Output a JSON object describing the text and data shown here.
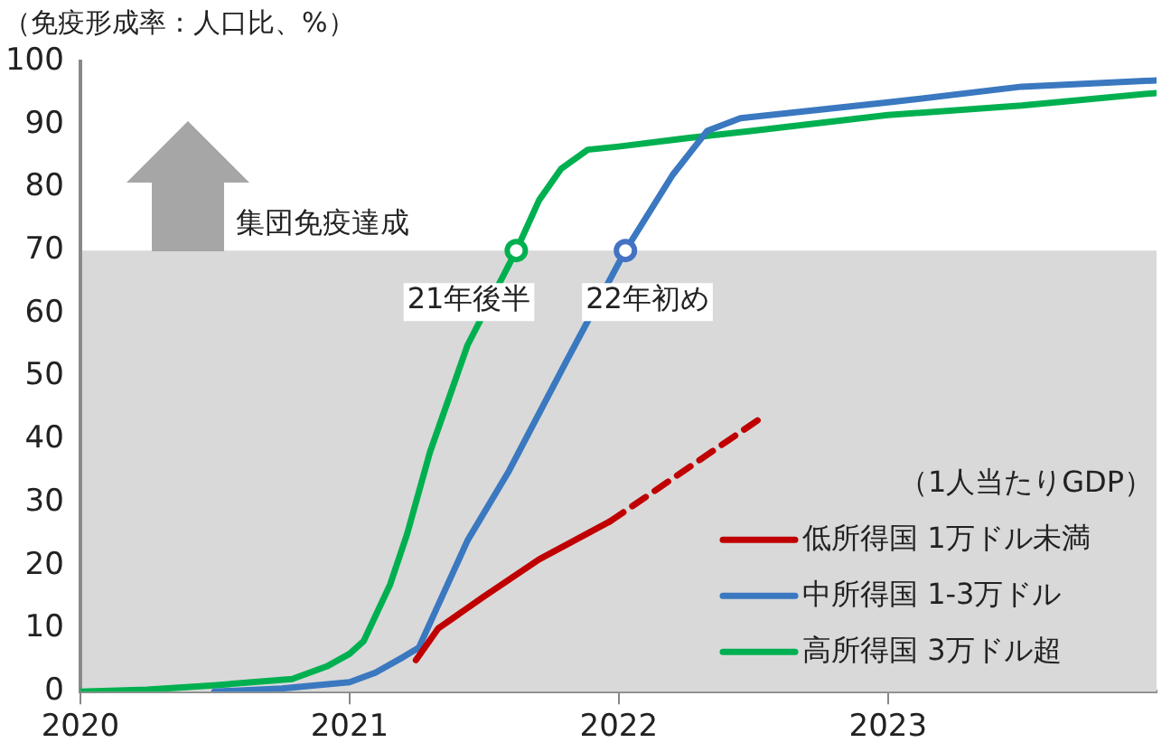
{
  "chart_data": {
    "type": "line",
    "ylabel": "（免疫形成率：人口比、%）",
    "legend_title": "（1人当たりGDP）",
    "legend": "bottom right",
    "grid": false,
    "marker": "none",
    "line_style": "solid",
    "xlim": [
      "2020-01-01",
      "2023-12-31"
    ],
    "xticks": [
      {
        "value": "2020-01-01",
        "label": "2020"
      },
      {
        "value": "2021-01-01",
        "label": "2021"
      },
      {
        "value": "2022-01-01",
        "label": "2022"
      },
      {
        "value": "2023-01-01",
        "label": "2023"
      }
    ],
    "ylim": [
      0,
      100
    ],
    "yticks": [
      0,
      10,
      20,
      30,
      40,
      50,
      60,
      70,
      80,
      90,
      100
    ],
    "bands": [
      {
        "axis": "y",
        "from": 0,
        "to": 70,
        "label": "集団免疫達成",
        "color": "#d9d9d9"
      }
    ],
    "annotations": [
      {
        "text": "21年後半",
        "x": "2021-08-15",
        "y": 70
      },
      {
        "text": "22年初め",
        "x": "2022-01-10",
        "y": 70
      }
    ],
    "series": [
      {
        "name": "低所得国 1万ドル未満",
        "color": "#c00000",
        "x": [
          "2021-04-01",
          "2021-05-01",
          "2021-07-01",
          "2021-09-15",
          "2021-12-20"
        ],
        "values": [
          5,
          10,
          15,
          21,
          27
        ]
      },
      {
        "color": "#c00000",
        "line_style": "dashed",
        "x": [
          "2021-12-20",
          "2022-07-20"
        ],
        "values": [
          27,
          44
        ]
      },
      {
        "name": "中所得国 1-3万ドル",
        "color": "#3a78c0",
        "x": [
          "2020-07-01",
          "2020-10-01",
          "2021-01-01",
          "2021-02-05",
          "2021-03-15",
          "2021-04-05",
          "2021-06-10",
          "2021-08-05",
          "2021-10-20",
          "2022-01-10",
          "2022-03-15",
          "2022-05-01",
          "2022-06-15",
          "2023-01-01",
          "2023-07-01",
          "2023-12-31"
        ],
        "values": [
          0,
          0.5,
          1.5,
          3,
          5.5,
          7,
          24,
          35,
          52,
          70,
          82,
          89,
          91,
          93.5,
          96,
          97
        ]
      },
      {
        "name": "高所得国 3万ドル超",
        "color": "#00b050",
        "x": [
          "2020-01-01",
          "2020-04-01",
          "2020-07-01",
          "2020-10-15",
          "2020-12-01",
          "2021-01-01",
          "2021-01-20",
          "2021-02-25",
          "2021-03-20",
          "2021-04-20",
          "2021-06-10",
          "2021-08-15",
          "2021-09-15",
          "2021-10-15",
          "2021-11-20",
          "2022-01-01",
          "2022-04-15",
          "2022-07-01",
          "2023-01-01",
          "2023-07-01",
          "2023-12-31"
        ],
        "values": [
          0,
          0.3,
          1,
          2,
          4,
          6,
          8,
          17,
          25,
          38,
          55,
          70,
          78,
          83,
          86,
          86.5,
          88,
          89,
          91.5,
          93,
          95
        ]
      },
      {
        "type": "scatter",
        "color": "#00b050",
        "marker": "circle",
        "x": [
          "2021-08-15"
        ],
        "values": [
          70
        ]
      },
      {
        "type": "scatter",
        "color": "#4472c4",
        "marker": "circle",
        "x": [
          "2022-01-10"
        ],
        "values": [
          70
        ]
      }
    ]
  }
}
